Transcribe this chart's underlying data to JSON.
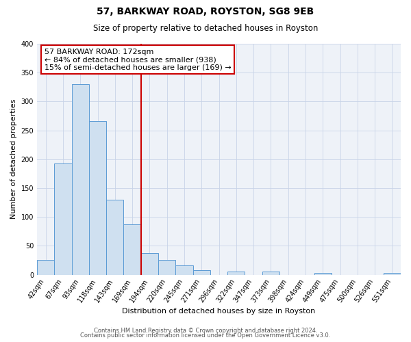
{
  "title": "57, BARKWAY ROAD, ROYSTON, SG8 9EB",
  "subtitle": "Size of property relative to detached houses in Royston",
  "xlabel": "Distribution of detached houses by size in Royston",
  "ylabel": "Number of detached properties",
  "bar_labels": [
    "42sqm",
    "67sqm",
    "93sqm",
    "118sqm",
    "143sqm",
    "169sqm",
    "194sqm",
    "220sqm",
    "245sqm",
    "271sqm",
    "296sqm",
    "322sqm",
    "347sqm",
    "373sqm",
    "398sqm",
    "424sqm",
    "449sqm",
    "475sqm",
    "500sqm",
    "526sqm",
    "551sqm"
  ],
  "bar_heights": [
    25,
    193,
    330,
    266,
    130,
    87,
    38,
    26,
    16,
    8,
    0,
    5,
    0,
    5,
    0,
    0,
    3,
    0,
    0,
    0,
    3
  ],
  "bar_color": "#cfe0f0",
  "bar_edge_color": "#5b9bd5",
  "vline_color": "#cc0000",
  "annotation_line1": "57 BARKWAY ROAD: 172sqm",
  "annotation_line2": "← 84% of detached houses are smaller (938)",
  "annotation_line3": "15% of semi-detached houses are larger (169) →",
  "ylim": [
    0,
    400
  ],
  "yticks": [
    0,
    50,
    100,
    150,
    200,
    250,
    300,
    350,
    400
  ],
  "footer1": "Contains HM Land Registry data © Crown copyright and database right 2024.",
  "footer2": "Contains public sector information licensed under the Open Government Licence v3.0.",
  "bg_color": "#ffffff",
  "plot_bg_color": "#eef2f8",
  "grid_color": "#c8d4e8",
  "title_fontsize": 10,
  "subtitle_fontsize": 8.5,
  "tick_fontsize": 7,
  "label_fontsize": 8,
  "annotation_fontsize": 8,
  "footer_fontsize": 6
}
